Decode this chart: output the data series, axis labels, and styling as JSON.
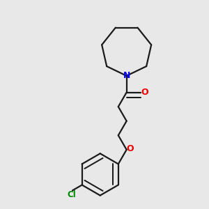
{
  "background_color": "#e8e8e8",
  "bond_color": "#1a1a1a",
  "N_color": "#0000ee",
  "O_color": "#ee0000",
  "Cl_color": "#008800",
  "line_width": 1.6,
  "dbo": 0.012,
  "figsize": [
    3.0,
    3.0
  ],
  "dpi": 100,
  "xlim": [
    0.05,
    0.95
  ],
  "ylim": [
    0.05,
    0.98
  ]
}
